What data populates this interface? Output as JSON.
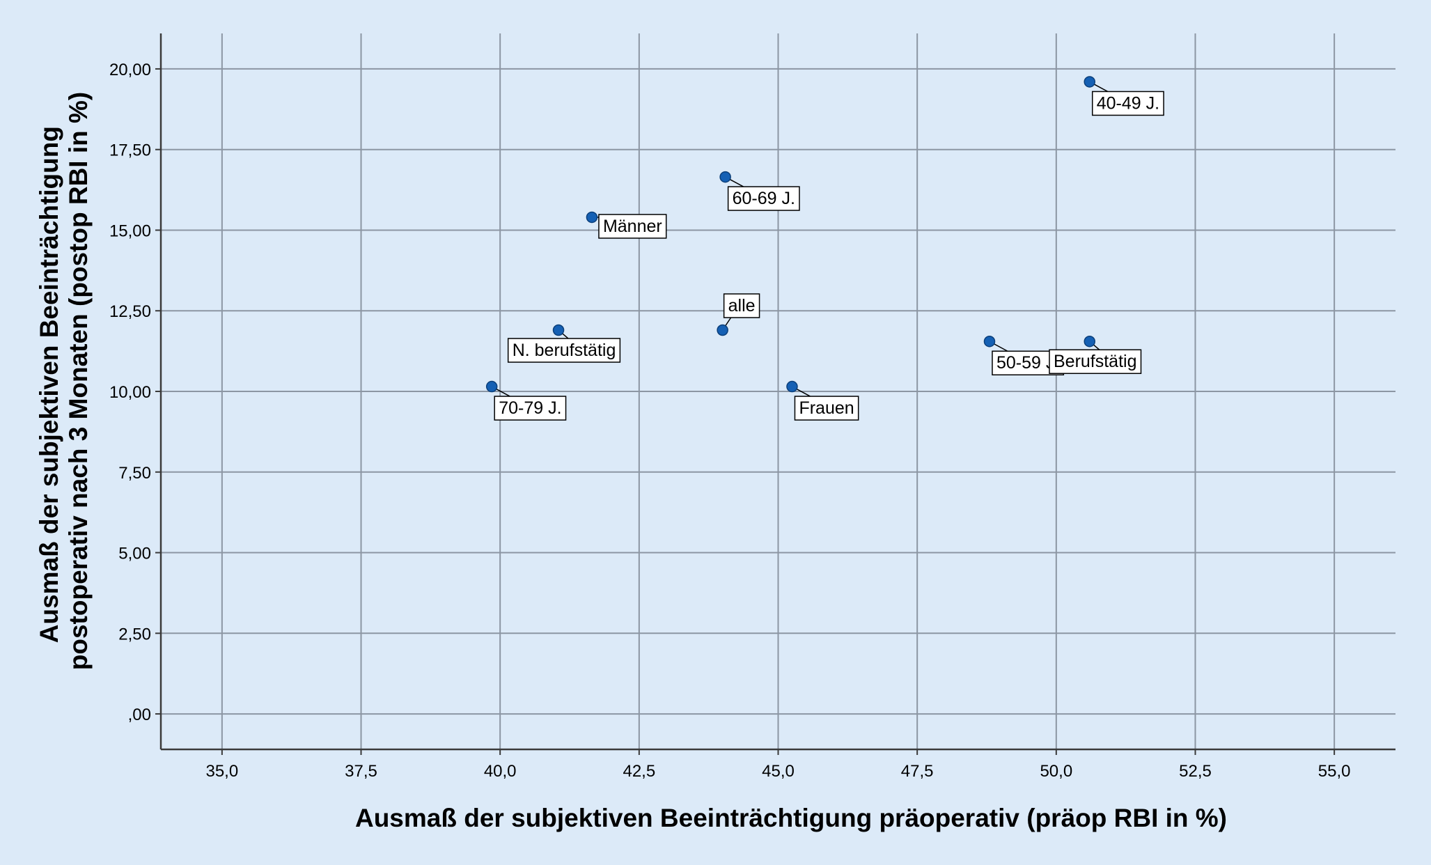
{
  "chart_data": {
    "type": "scatter",
    "xlabel": "Ausmaß der subjektiven Beeinträchtigung präoperativ (präop RBI in %)",
    "ylabel_lines": [
      "Ausmaß der subjektiven Beeinträchtigung",
      "postoperativ nach 3 Monaten (postop RBI in %)"
    ],
    "xlim": [
      33.9,
      56.1
    ],
    "ylim": [
      -1.1,
      21.1
    ],
    "x_ticks": [
      35.0,
      37.5,
      40.0,
      42.5,
      45.0,
      47.5,
      50.0,
      52.5,
      55.0
    ],
    "x_tick_labels": [
      "35,0",
      "37,5",
      "40,0",
      "42,5",
      "45,0",
      "47,5",
      "50,0",
      "52,5",
      "55,0"
    ],
    "y_ticks": [
      0,
      2.5,
      5,
      7.5,
      10,
      12.5,
      15,
      17.5,
      20
    ],
    "y_tick_labels": [
      ",00",
      "2,50",
      "5,00",
      "7,50",
      "10,00",
      "12,50",
      "15,00",
      "17,50",
      "20,00"
    ],
    "grid": true,
    "points": [
      {
        "label": "40-49 J.",
        "x": 50.6,
        "y": 19.6,
        "label_side": "below-right"
      },
      {
        "label": "60-69 J.",
        "x": 44.05,
        "y": 16.65,
        "label_side": "below-right"
      },
      {
        "label": "Männer",
        "x": 41.65,
        "y": 15.4,
        "label_side": "right"
      },
      {
        "label": "alle",
        "x": 44.0,
        "y": 11.9,
        "label_side": "above-right"
      },
      {
        "label": "N. berufstätig",
        "x": 41.05,
        "y": 11.9,
        "label_side": "below"
      },
      {
        "label": "70-79 J.",
        "x": 39.85,
        "y": 10.15,
        "label_side": "below-right"
      },
      {
        "label": "Frauen",
        "x": 45.25,
        "y": 10.15,
        "label_side": "below-right"
      },
      {
        "label": "50-59 J.",
        "x": 48.8,
        "y": 11.55,
        "label_side": "below-right"
      },
      {
        "label": "Berufstätig",
        "x": 50.6,
        "y": 11.55,
        "label_side": "below"
      }
    ],
    "colors": {
      "background": "#dceaf8",
      "grid": "#8c96a3",
      "axis": "#3a3a3a",
      "marker": "#1560b4",
      "marker_edge": "#0b3f7a"
    }
  }
}
